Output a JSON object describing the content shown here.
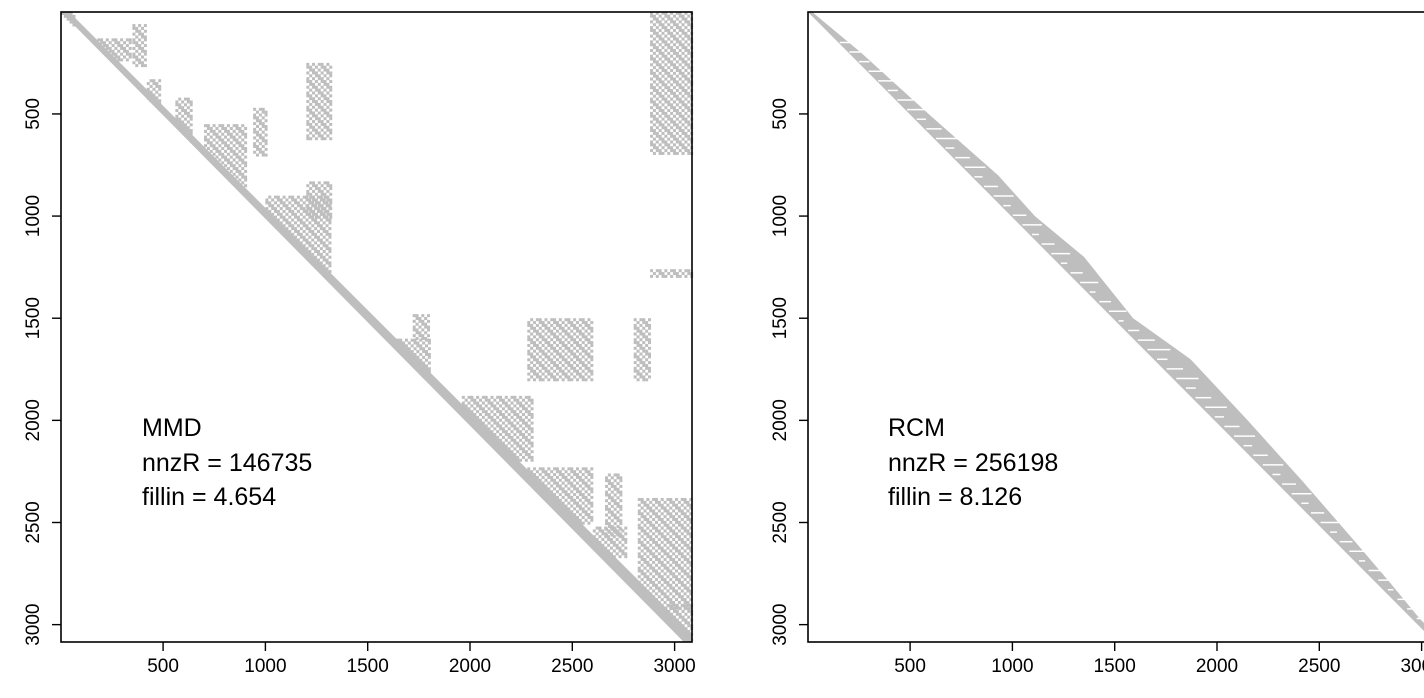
{
  "chart_data": [
    {
      "type": "heatmap",
      "subtype": "sparsity-pattern",
      "title": "",
      "xlabel": "",
      "ylabel": "",
      "xlim": [
        1,
        3085
      ],
      "ylim": [
        1,
        3085
      ],
      "y_inverted": true,
      "x_ticks": [
        "500",
        "1000",
        "1500",
        "2000",
        "2500",
        "3000"
      ],
      "y_ticks": [
        "500",
        "1000",
        "1500",
        "2000",
        "2500",
        "3000"
      ],
      "grid": false,
      "nonzero_color": "#bebebe",
      "annotation": {
        "method": "MMD",
        "nnz_line": "nnzR = 146735",
        "fill_line": "fillin = 4.654"
      },
      "pattern": {
        "rects": [
          [
            1,
            60,
            1,
            70
          ],
          [
            150,
            340,
            130,
            230
          ],
          [
            350,
            420,
            60,
            270
          ],
          [
            420,
            480,
            330,
            470
          ],
          [
            560,
            640,
            420,
            700
          ],
          [
            700,
            900,
            550,
            900
          ],
          [
            940,
            1010,
            470,
            700
          ],
          [
            1200,
            1320,
            250,
            620
          ],
          [
            1200,
            1320,
            830,
            1000
          ],
          [
            1000,
            1320,
            900,
            1320
          ],
          [
            1500,
            1800,
            1600,
            1900
          ],
          [
            1960,
            2300,
            1880,
            2200
          ],
          [
            2280,
            2600,
            2230,
            2500
          ],
          [
            2600,
            2760,
            2520,
            2670
          ],
          [
            2660,
            2740,
            2260,
            2560
          ],
          [
            2820,
            3085,
            2380,
            2920
          ],
          [
            2880,
            3085,
            1260,
            1300
          ],
          [
            2880,
            3085,
            0,
            700
          ],
          [
            2950,
            3085,
            2900,
            3085
          ],
          [
            2280,
            2600,
            1500,
            1800
          ],
          [
            1720,
            1800,
            1480,
            1600
          ],
          [
            2800,
            2880,
            1500,
            1800
          ]
        ],
        "diagonal_band": 40
      }
    },
    {
      "type": "heatmap",
      "subtype": "sparsity-pattern",
      "title": "",
      "xlabel": "",
      "ylabel": "",
      "xlim": [
        1,
        3085
      ],
      "ylim": [
        1,
        3085
      ],
      "y_inverted": true,
      "x_ticks": [
        "500",
        "1000",
        "1500",
        "2000",
        "2500",
        "3000"
      ],
      "y_ticks": [
        "500",
        "1000",
        "1500",
        "2000",
        "2500",
        "3000"
      ],
      "grid": false,
      "nonzero_color": "#bebebe",
      "annotation": {
        "method": "RCM",
        "nnz_line": "nnzR = 256198",
        "fill_line": "fillin = 8.126"
      },
      "pattern": {
        "band_profile": [
          [
            0,
            20
          ],
          [
            200,
            60
          ],
          [
            500,
            90
          ],
          [
            800,
            130
          ],
          [
            1000,
            110
          ],
          [
            1200,
            150
          ],
          [
            1500,
            90
          ],
          [
            1700,
            170
          ],
          [
            2000,
            150
          ],
          [
            2300,
            120
          ],
          [
            2600,
            80
          ],
          [
            2800,
            50
          ],
          [
            3085,
            20
          ]
        ],
        "diagonal_band": 20
      }
    }
  ]
}
